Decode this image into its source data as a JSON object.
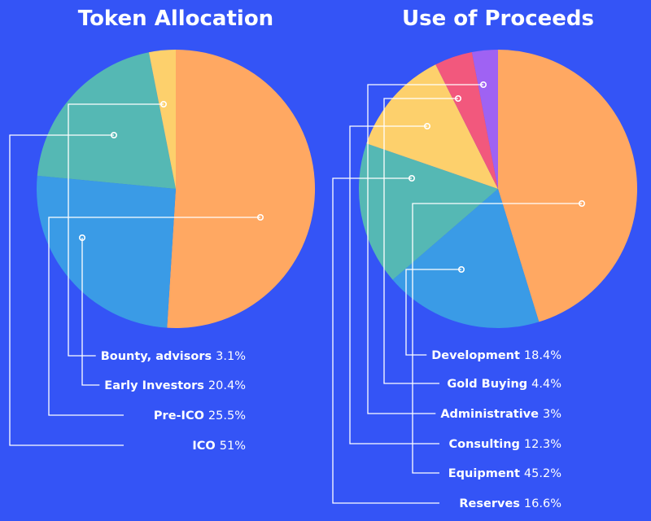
{
  "chart_data": [
    {
      "type": "pie",
      "title": "Token Allocation",
      "slices": [
        {
          "name": "ICO",
          "value": 51,
          "value_label": "51%",
          "color": "#ffa862"
        },
        {
          "name": "Pre-ICO",
          "value": 25.5,
          "value_label": "25.5%",
          "color": "#3a9be6"
        },
        {
          "name": "Early Investors",
          "value": 20.4,
          "value_label": "20.4%",
          "color": "#55b8b4"
        },
        {
          "name": "Bounty, advisors",
          "value": 3.1,
          "value_label": "3.1%",
          "color": "#fdd06c"
        }
      ],
      "legend_order": [
        {
          "name": "Bounty, advisors",
          "value_label": "3.1%"
        },
        {
          "name": "Early Investors",
          "value_label": "20.4%"
        },
        {
          "name": "Pre-ICO",
          "value_label": "25.5%"
        },
        {
          "name": "ICO",
          "value_label": "51%"
        }
      ]
    },
    {
      "type": "pie",
      "title": "Use of Proceeds",
      "slices": [
        {
          "name": "Equipment",
          "value": 45.2,
          "value_label": "45.2%",
          "color": "#ffa862"
        },
        {
          "name": "Development",
          "value": 18.4,
          "value_label": "18.4%",
          "color": "#3a9be6"
        },
        {
          "name": "Reserves",
          "value": 16.6,
          "value_label": "16.6%",
          "color": "#55b8b4"
        },
        {
          "name": "Consulting",
          "value": 12.3,
          "value_label": "12.3%",
          "color": "#fdd06c"
        },
        {
          "name": "Gold Buying",
          "value": 4.4,
          "value_label": "4.4%",
          "color": "#f2587d"
        },
        {
          "name": "Administrative",
          "value": 3,
          "value_label": "3%",
          "color": "#9f62f3"
        }
      ],
      "legend_order": [
        {
          "name": "Development",
          "value_label": "18.4%"
        },
        {
          "name": "Gold Buying",
          "value_label": "4.4%"
        },
        {
          "name": "Administrative",
          "value_label": "3%"
        },
        {
          "name": "Consulting",
          "value_label": "12.3%"
        },
        {
          "name": "Equipment",
          "value_label": "45.2%"
        },
        {
          "name": "Reserves",
          "value_label": "16.6%"
        }
      ]
    }
  ]
}
